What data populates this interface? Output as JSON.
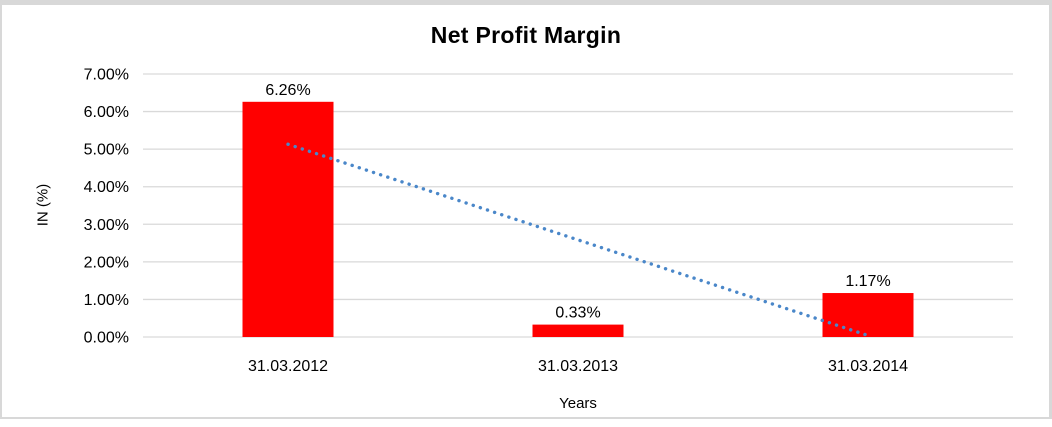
{
  "chart_data": {
    "type": "bar",
    "title": "Net Profit Margin",
    "xlabel": "Years",
    "ylabel": "IN (%)",
    "categories": [
      "31.03.2012",
      "31.03.2013",
      "31.03.2014"
    ],
    "values": [
      6.26,
      0.33,
      1.17
    ],
    "data_labels": [
      "6.26%",
      "0.33%",
      "1.17%"
    ],
    "ylim": [
      0,
      7
    ],
    "ytick_step": 1,
    "ytick_labels": [
      "0.00%",
      "1.00%",
      "2.00%",
      "3.00%",
      "4.00%",
      "5.00%",
      "6.00%",
      "7.00%"
    ],
    "grid": true,
    "legend": "none",
    "bar_color": "#ff0000",
    "gridline_color": "#d9d9d9",
    "text_color": "#000000",
    "frame_border_color": "#d8d8d8",
    "trendline": {
      "type": "linear",
      "style": "dotted",
      "color": "#4a87c9",
      "start_value": 5.13,
      "end_value": 0.04
    }
  }
}
